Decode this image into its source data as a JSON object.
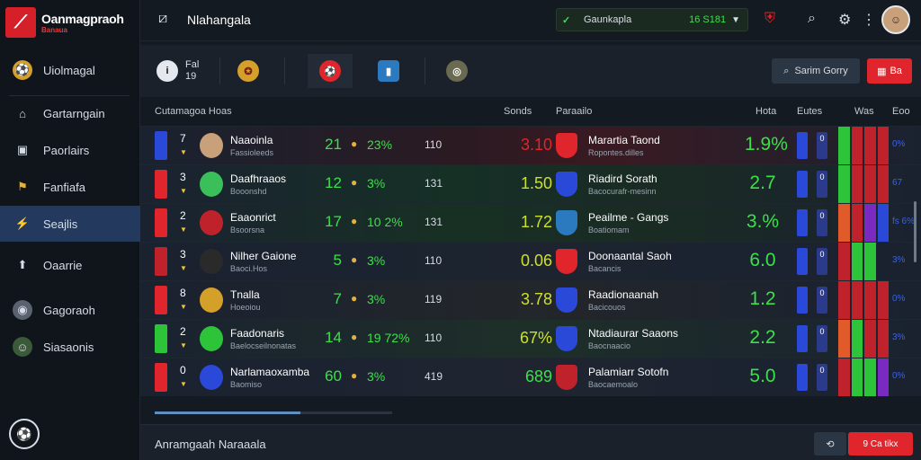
{
  "brand": {
    "logo_glyph": "⟋",
    "title": "Oanmagpraoh",
    "subtitle": "Banaua"
  },
  "sidebar": {
    "items": [
      {
        "label": "Uiolmagal",
        "icon": "⚽"
      },
      {
        "label": "Gartarngain",
        "icon": "⌂"
      },
      {
        "label": "Paorlairs",
        "icon": "▣"
      },
      {
        "label": "Fanfiafa",
        "icon": "⚑"
      },
      {
        "label": "Seajlis",
        "icon": "⚡"
      },
      {
        "label": "Oaarrie",
        "icon": "⬆"
      },
      {
        "label": "Gagoraoh",
        "icon": "◉"
      },
      {
        "label": "Siasaonis",
        "icon": "☺"
      }
    ],
    "bottom_icon": "⚽"
  },
  "topbar": {
    "title": "Nlahangala",
    "live": {
      "label": "Gaunkapla",
      "score": "16 S181"
    },
    "icons": [
      "diamond-icon",
      "shield-icon",
      "search-icon",
      "gear-icon",
      "more-icon"
    ]
  },
  "filterbar": {
    "first_chip": {
      "line1": "Fal",
      "line2": "19"
    },
    "search_label": "Sarim Gorry",
    "red_label": "Ba"
  },
  "table": {
    "headers": {
      "team": "Cutamagoa Hoas",
      "odds": "Sonds",
      "opponent": "Paraailo",
      "rating": "Hota",
      "a": "Eutes",
      "b": "Was",
      "c": "Eoo"
    },
    "rows": [
      {
        "rank": "7",
        "team": "Naaoinla",
        "sub": "Fassioleeds",
        "s1": "21",
        "pct": "23%",
        "mid": "110",
        "odds": "3.10",
        "odds_color": "#e0252c",
        "opp": "Marartia Taond",
        "opp_sub": "Ropontes.dilles",
        "rating": "1.9%",
        "b": "0",
        "end": "0%",
        "flag": "#2b49d8",
        "badge": "#c8a07a",
        "opp_badge": "#e0252c",
        "form": [
          "#2ec43a",
          "#c0222c",
          "#c0222c",
          "#c0222c"
        ]
      },
      {
        "rank": "3",
        "team": "Daafhraaos",
        "sub": "Booonshd",
        "s1": "12",
        "pct": "3%",
        "mid": "131",
        "odds": "1.50",
        "odds_color": "#cde02a",
        "opp": "Riadird Sorath",
        "opp_sub": "Bacocurafr-mesinn",
        "rating": "2.7",
        "b": "0",
        "end": "67",
        "flag": "#e0252c",
        "badge": "#3bbf5a",
        "opp_badge": "#2b49d8",
        "form": [
          "#2ec43a",
          "#c0222c",
          "#c0222c",
          "#c0222c"
        ]
      },
      {
        "rank": "2",
        "team": "Eaaonrict",
        "sub": "Bsoorsna",
        "s1": "17",
        "pct": "10 2%",
        "mid": "131",
        "odds": "1.72",
        "odds_color": "#cde02a",
        "opp": "Peailme - Gangs",
        "opp_sub": "Boatiomam",
        "rating": "3.%",
        "b": "0",
        "end": "fs 6%",
        "flag": "#e0252c",
        "badge": "#c0222c",
        "opp_badge": "#2b7ac0",
        "form": [
          "#e05a2a",
          "#c0222c",
          "#7a2ac0",
          "#2b49d8"
        ]
      },
      {
        "rank": "3",
        "team": "Nilher Gaione",
        "sub": "Baoci.Hos",
        "s1": "5",
        "pct": "3%",
        "mid": "110",
        "odds": "0.06",
        "odds_color": "#cde02a",
        "opp": "Doonaantal Saoh",
        "opp_sub": "Bacancis",
        "rating": "6.0",
        "b": "0",
        "end": "3%",
        "flag": "#c0222c",
        "badge": "#2a2a2a",
        "opp_badge": "#e0252c",
        "form": [
          "#c0222c",
          "#2ec43a",
          "#2ec43a",
          "#1a2230"
        ]
      },
      {
        "rank": "8",
        "team": "Tnalla",
        "sub": "Hoeoiou",
        "s1": "7",
        "pct": "3%",
        "mid": "119",
        "odds": "3.78",
        "odds_color": "#cde02a",
        "opp": "Raadionaanah",
        "opp_sub": "Bacicouos",
        "rating": "1.2",
        "b": "0",
        "end": "0%",
        "flag": "#e0252c",
        "badge": "#d4a02a",
        "opp_badge": "#2b49d8",
        "form": [
          "#c0222c",
          "#c0222c",
          "#c0222c",
          "#c0222c"
        ]
      },
      {
        "rank": "2",
        "team": "Faadonaris",
        "sub": "Baelocseilnonatas",
        "s1": "14",
        "pct": "19 72%",
        "mid": "110",
        "odds": "67%",
        "odds_color": "#cde02a",
        "opp": "Ntadiaurar Saaons",
        "opp_sub": "Baocnaacio",
        "rating": "2.2",
        "b": "0",
        "end": "3%",
        "flag": "#2ec43a",
        "badge": "#2ec43a",
        "opp_badge": "#2b49d8",
        "form": [
          "#e05a2a",
          "#2ec43a",
          "#c0222c",
          "#c0222c"
        ]
      },
      {
        "rank": "0",
        "team": "Narlamaoxamba",
        "sub": "Baomiso",
        "s1": "60",
        "pct": "3%",
        "mid": "419",
        "odds": "689",
        "odds_color": "#3be04a",
        "opp": "Palamiarr Sotofn",
        "opp_sub": "Baocaemoalo",
        "rating": "5.0",
        "b": "0",
        "end": "0%",
        "flag": "#e0252c",
        "badge": "#2b49d8",
        "opp_badge": "#c0222c",
        "form": [
          "#c0222c",
          "#2ec43a",
          "#2ec43a",
          "#7a2ac0"
        ]
      }
    ]
  },
  "footer": {
    "title": "Anramgaah Naraaala",
    "btn1": "⟲",
    "btn2": "9 Ca tikx"
  }
}
